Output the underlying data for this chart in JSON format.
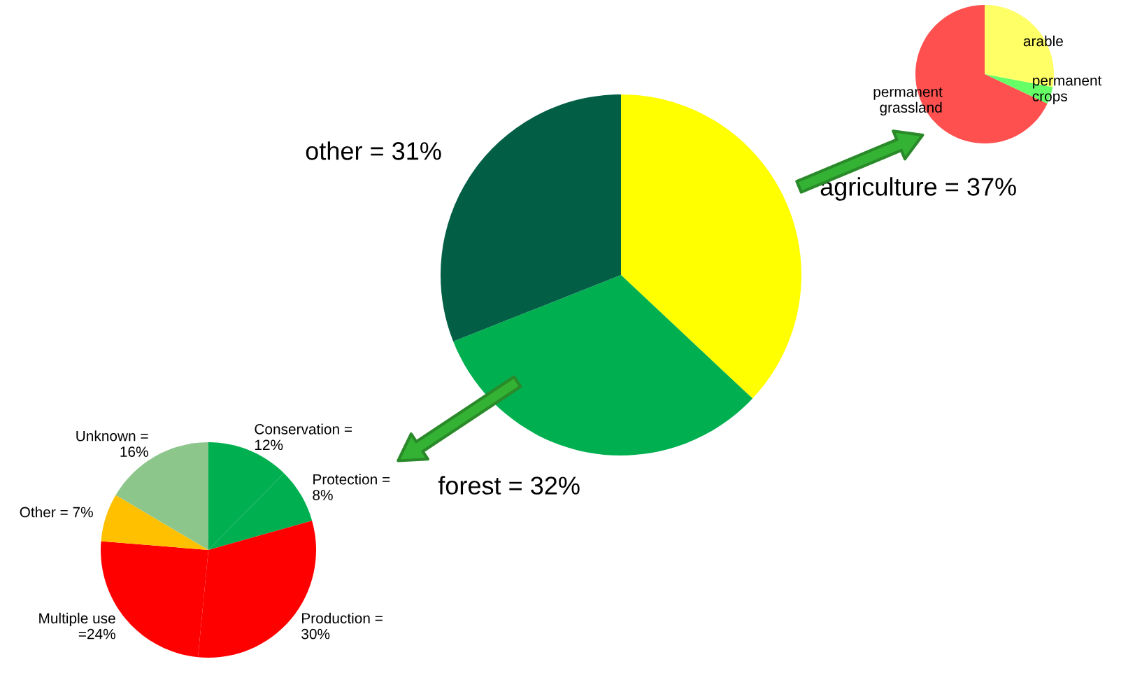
{
  "chart_data": [
    {
      "type": "pie",
      "categories": [
        "agriculture = 37%",
        "forest = 32%",
        "other = 31%"
      ],
      "values": [
        37,
        32,
        31
      ],
      "colors": [
        "#ffff00",
        "#00b050",
        "#025f46"
      ]
    },
    {
      "type": "pie",
      "categories": [
        "arable",
        "permanent\ncrops",
        "permanent\ngrassland"
      ],
      "values": [
        28,
        4,
        68
      ],
      "colors": [
        "#ffff66",
        "#66ff66",
        "#ff5050"
      ]
    },
    {
      "type": "pie",
      "categories": [
        "Conservation =\n12%",
        "Protection =\n8%",
        "Production =\n30%",
        "Multiple use\n=24%",
        "Other = 7%",
        "Unknown =\n16%"
      ],
      "values": [
        12,
        8,
        30,
        24,
        7,
        16
      ],
      "colors": [
        "#00b050",
        "#00b050",
        "#ff0000",
        "#ff0000",
        "#ffc000",
        "#8dc68b"
      ]
    }
  ]
}
